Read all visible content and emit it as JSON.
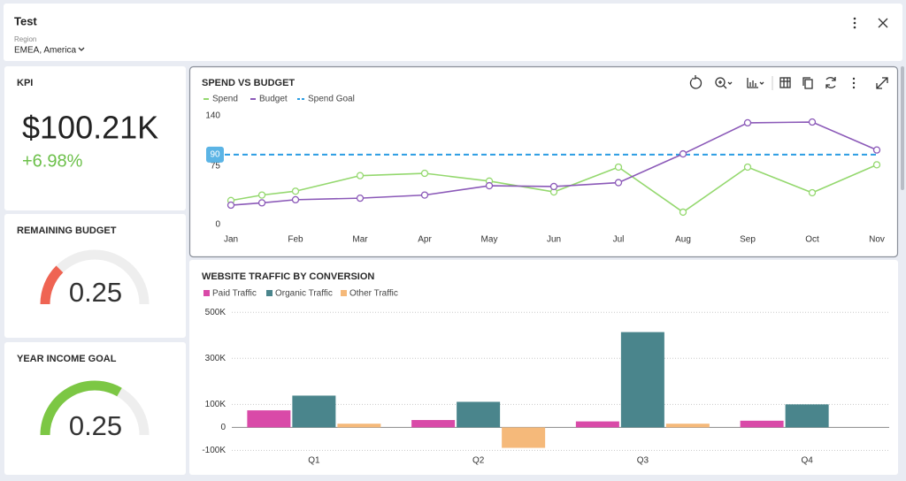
{
  "header": {
    "title": "Test",
    "region_label": "Region",
    "region_value": "EMEA, America"
  },
  "kpi": {
    "title": "KPI",
    "value": "$100.21K",
    "change": "+6.98%"
  },
  "gauges": [
    {
      "title": "REMAINING BUDGET",
      "value": 0.25,
      "lim": [
        0,
        1
      ],
      "color": "#ef6453"
    },
    {
      "title": "YEAR INCOME GOAL",
      "value": 0.25,
      "lim": [
        0,
        0.375
      ],
      "color": "#7cc744"
    }
  ],
  "chart_data": [
    {
      "type": "line",
      "title": "SPEND VS BUDGET",
      "categories": [
        "Jan",
        null,
        "Feb",
        "Mar",
        "Apr",
        "May",
        "Jun",
        "Jul",
        "Aug",
        "Sep",
        "Oct",
        "Nov"
      ],
      "series": [
        {
          "name": "Spend",
          "color": "#94d86e",
          "values": [
            31,
            38,
            43,
            63,
            66,
            56,
            42,
            74,
            16,
            74,
            41,
            77
          ]
        },
        {
          "name": "Budget",
          "color": "#8b59b8",
          "values": [
            25,
            28,
            32,
            34,
            38,
            50,
            49,
            54,
            91,
            131,
            132,
            96
          ]
        }
      ],
      "goal": {
        "name": "Spend Goal",
        "value": 90,
        "color": "#2b9de3"
      },
      "ylim": [
        0,
        140
      ],
      "yticks": [
        0,
        75,
        140
      ]
    },
    {
      "type": "bar",
      "title": "WEBSITE TRAFFIC BY CONVERSION",
      "categories": [
        "Q1",
        "Q2",
        "Q3",
        "Q4"
      ],
      "series": [
        {
          "name": "Paid Traffic",
          "color": "#d94aa8",
          "values": [
            74000,
            32000,
            26000,
            29000
          ]
        },
        {
          "name": "Organic Traffic",
          "color": "#4a858c",
          "values": [
            138000,
            111000,
            414000,
            100000
          ]
        },
        {
          "name": "Other Traffic",
          "color": "#f5b97a",
          "values": [
            16000,
            -89000,
            16000,
            null
          ]
        }
      ],
      "ylim": [
        -110000,
        520000
      ],
      "yticks": [
        {
          "value": 500000,
          "label": "500K"
        },
        {
          "value": 300000,
          "label": "300K"
        },
        {
          "value": 100000,
          "label": "100K"
        },
        0,
        {
          "value": -100000,
          "label": "-100K"
        }
      ],
      "grid": true
    }
  ]
}
